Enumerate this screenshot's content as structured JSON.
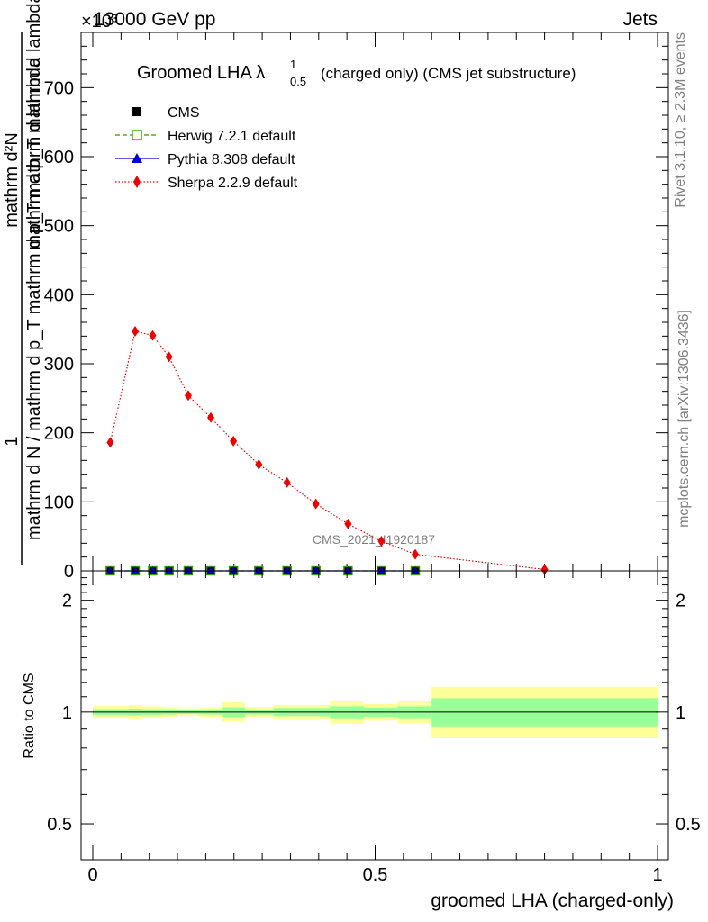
{
  "header": {
    "energy": "13000 GeV pp",
    "category": "Jets",
    "exponent": "×10³"
  },
  "side": {
    "rivet": "Rivet 3.1.10, ≥ 2.3M events",
    "mcplots": "mcplots.cern.ch [arXiv:1306.3436]"
  },
  "colors": {
    "cms": "#000000",
    "herwig": "#339900",
    "pythia": "#0000cc",
    "sherpa": "#ee0000",
    "band_inner": "#99ff99",
    "band_outer": "#ffff99"
  },
  "chart_data": [
    {
      "type": "line",
      "title": "Groomed LHA λ",
      "title_sup": "1",
      "title_sub": "0.5",
      "title_suffix": "(charged only) (CMS jet substructure)",
      "ylabel_numerator_1": "1",
      "ylabel_denominator_1": "mathrm d N / mathrm d p_T mathrm d p_T mathrm d lambda",
      "ylabel_numerator_2": "mathrm d²N",
      "ylabel_denominator_2": "mathrm d p_T mathrm d lambda",
      "xlabel": "",
      "xlim": [
        0,
        1
      ],
      "ylim": [
        0,
        780
      ],
      "y_scale_note": "×10³",
      "yticks": [
        0,
        100,
        200,
        300,
        400,
        500,
        600,
        700
      ],
      "analysis_label": "CMS_2021_I1920187",
      "legend_position": "top-left",
      "series": [
        {
          "name": "CMS",
          "style": "markers",
          "x": [
            0.031,
            0.075,
            0.106,
            0.135,
            0.169,
            0.209,
            0.249,
            0.294,
            0.344,
            0.395,
            0.452,
            0.511,
            0.571
          ],
          "y": [
            0,
            0,
            0,
            0,
            0,
            0,
            0,
            0,
            0,
            0,
            0,
            0,
            0
          ]
        },
        {
          "name": "Herwig 7.2.1 default",
          "style": "dashed",
          "x": [
            0.031,
            0.075,
            0.106,
            0.135,
            0.169,
            0.209,
            0.249,
            0.294,
            0.344,
            0.395,
            0.452,
            0.511,
            0.571
          ],
          "y": [
            0,
            0,
            0,
            0,
            0,
            0,
            0,
            0,
            0,
            0,
            0,
            0,
            0
          ]
        },
        {
          "name": "Pythia 8.308 default",
          "style": "solid",
          "x": [
            0.031,
            0.075,
            0.106,
            0.135,
            0.169,
            0.209,
            0.249,
            0.294,
            0.344,
            0.395,
            0.452,
            0.511,
            0.571
          ],
          "y": [
            0,
            0,
            0,
            0,
            0,
            0,
            0,
            0,
            0,
            0,
            0,
            0,
            0
          ]
        },
        {
          "name": "Sherpa 2.2.9 default",
          "style": "dotted",
          "x": [
            0.031,
            0.075,
            0.106,
            0.135,
            0.169,
            0.209,
            0.249,
            0.294,
            0.344,
            0.395,
            0.452,
            0.511,
            0.571,
            0.8
          ],
          "y": [
            186,
            347,
            341,
            310,
            254,
            222,
            188,
            154,
            128,
            97,
            68,
            43,
            24,
            2
          ]
        }
      ]
    },
    {
      "type": "area",
      "ylabel": "Ratio to CMS",
      "xlabel": "groomed LHA (charged-only)",
      "xlim": [
        0,
        1
      ],
      "ylim": [
        0.4,
        2.4
      ],
      "yscale": "log",
      "yticks": [
        0.5,
        1,
        2
      ],
      "xticks": [
        0,
        0.5,
        1
      ],
      "bins": [
        {
          "lo": 0.0,
          "hi": 0.0625,
          "inner": [
            0.983,
            1.018
          ],
          "outer": [
            0.965,
            1.038
          ]
        },
        {
          "lo": 0.0625,
          "hi": 0.0875,
          "inner": [
            0.978,
            1.022
          ],
          "outer": [
            0.958,
            1.044
          ]
        },
        {
          "lo": 0.0875,
          "hi": 0.125,
          "inner": [
            0.983,
            1.018
          ],
          "outer": [
            0.966,
            1.036
          ]
        },
        {
          "lo": 0.125,
          "hi": 0.15,
          "inner": [
            0.985,
            1.015
          ],
          "outer": [
            0.97,
            1.03
          ]
        },
        {
          "lo": 0.15,
          "hi": 0.1875,
          "inner": [
            0.988,
            1.012
          ],
          "outer": [
            0.976,
            1.024
          ]
        },
        {
          "lo": 0.1875,
          "hi": 0.23,
          "inner": [
            0.985,
            1.015
          ],
          "outer": [
            0.972,
            1.028
          ]
        },
        {
          "lo": 0.23,
          "hi": 0.27,
          "inner": [
            0.97,
            1.03
          ],
          "outer": [
            0.942,
            1.062
          ]
        },
        {
          "lo": 0.27,
          "hi": 0.32,
          "inner": [
            0.985,
            1.015
          ],
          "outer": [
            0.97,
            1.032
          ]
        },
        {
          "lo": 0.32,
          "hi": 0.37,
          "inner": [
            0.975,
            1.025
          ],
          "outer": [
            0.955,
            1.045
          ]
        },
        {
          "lo": 0.37,
          "hi": 0.42,
          "inner": [
            0.975,
            1.025
          ],
          "outer": [
            0.955,
            1.045
          ]
        },
        {
          "lo": 0.42,
          "hi": 0.48,
          "inner": [
            0.963,
            1.037
          ],
          "outer": [
            0.93,
            1.075
          ]
        },
        {
          "lo": 0.48,
          "hi": 0.54,
          "inner": [
            0.972,
            1.028
          ],
          "outer": [
            0.948,
            1.052
          ]
        },
        {
          "lo": 0.54,
          "hi": 0.6,
          "inner": [
            0.963,
            1.037
          ],
          "outer": [
            0.932,
            1.075
          ]
        },
        {
          "lo": 0.6,
          "hi": 1.0,
          "inner": [
            0.915,
            1.09
          ],
          "outer": [
            0.85,
            1.17
          ]
        }
      ],
      "reference_line": 1
    }
  ]
}
